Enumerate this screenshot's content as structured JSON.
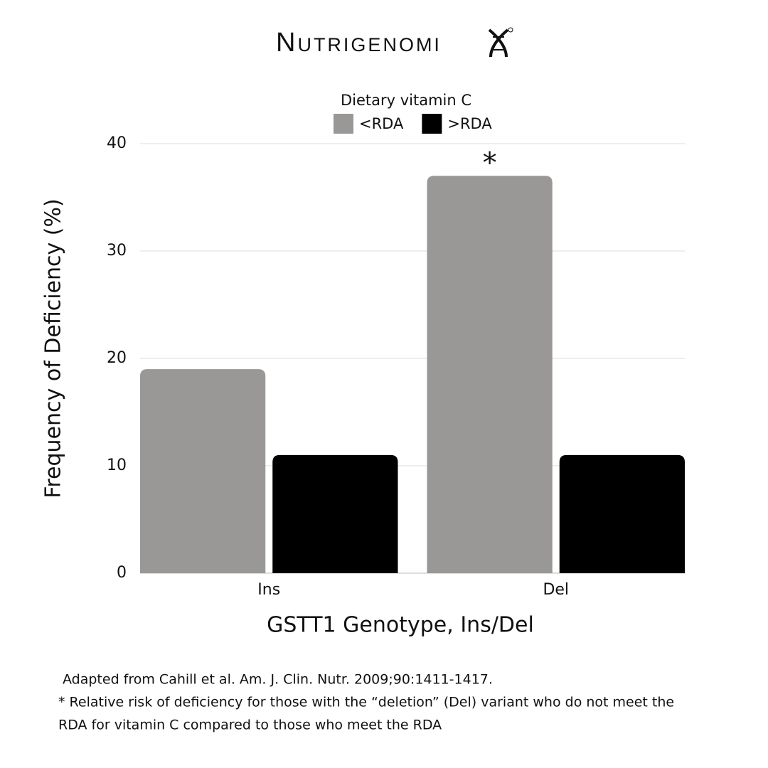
{
  "brand": "Nutrigenomi",
  "chart_data": {
    "type": "bar",
    "legend_title": "Dietary vitamin C",
    "categories": [
      "Ins",
      "Del"
    ],
    "series": [
      {
        "name": "<RDA",
        "color": "#999897",
        "values": [
          19,
          37
        ]
      },
      {
        "name": ">RDA",
        "color": "#000000",
        "values": [
          11,
          11
        ]
      }
    ],
    "ylim": [
      0,
      40
    ],
    "yticks": [
      0,
      10,
      20,
      30,
      40
    ],
    "grid": true,
    "y_label": "Frequency of Deficiency (%)",
    "x_label": "GSTT1 Genotype, Ins/Del",
    "annotations": [
      "*"
    ]
  },
  "notes": [
    "Adapted from Cahill et al. Am. J. Clin. Nutr. 2009;90:1411-1417.",
    "* Relative risk of deficiency for those with the “deletion” (Del) variant who do not meet the",
    "RDA for vitamin C compared to those who meet the RDA"
  ]
}
